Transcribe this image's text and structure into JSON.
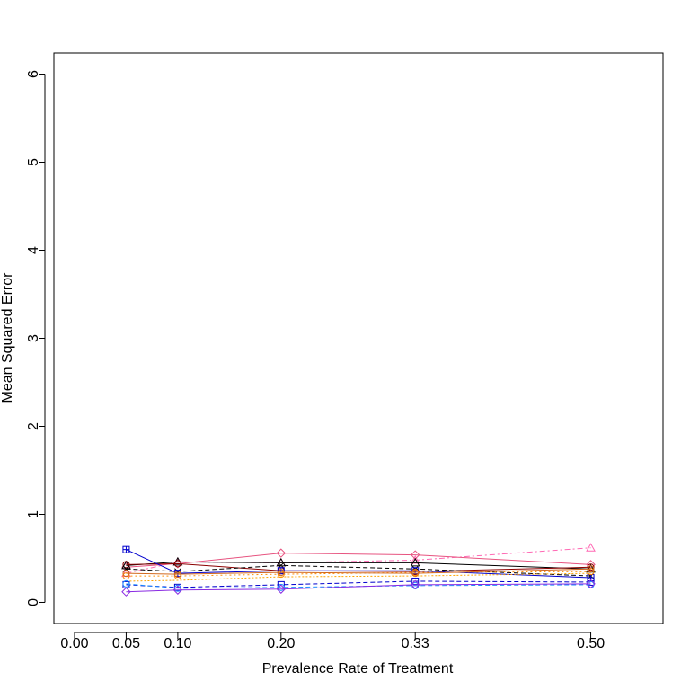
{
  "chart_data": {
    "type": "line",
    "title": "",
    "xlabel": "Prevalence Rate of Treatment",
    "ylabel": "Mean Squared Error",
    "x": [
      0.05,
      0.1,
      0.2,
      0.33,
      0.5
    ],
    "xticks": [
      0.0,
      0.05,
      0.1,
      0.2,
      0.33,
      0.5
    ],
    "xtick_labels": [
      "0.00",
      "0.05",
      "0.10",
      "0.20",
      "0.33",
      "0.50"
    ],
    "yticks": [
      0,
      1,
      2,
      3,
      4,
      5,
      6
    ],
    "ytick_labels": [
      "0",
      "1",
      "2",
      "3",
      "4",
      "5",
      "6"
    ],
    "xlim": [
      -0.02,
      0.57
    ],
    "ylim": [
      -0.24,
      6.24
    ],
    "grid": false,
    "series": [
      {
        "color": "#ff69b4",
        "dash": "6,3,2,3",
        "marker": "triangle",
        "values": [
          0.33,
          0.46,
          0.45,
          0.48,
          0.62
        ]
      },
      {
        "color": "#e75480",
        "dash": "",
        "marker": "diamond",
        "values": [
          0.4,
          0.44,
          0.56,
          0.54,
          0.43
        ]
      },
      {
        "color": "#000000",
        "dash": "",
        "marker": "triangle",
        "values": [
          0.42,
          0.46,
          0.45,
          0.45,
          0.38
        ]
      },
      {
        "color": "#8b0000",
        "dash": "",
        "marker": "circle",
        "values": [
          0.43,
          0.44,
          0.36,
          0.35,
          0.4
        ]
      },
      {
        "color": "#000000",
        "dash": "5,3",
        "marker": "cross",
        "values": [
          0.38,
          0.35,
          0.42,
          0.38,
          0.3
        ]
      },
      {
        "color": "#0000cd",
        "dash": "",
        "marker": "square-plus",
        "values": [
          0.6,
          0.33,
          0.36,
          0.36,
          0.28
        ]
      },
      {
        "color": "#ff8c00",
        "dash": "2,3",
        "marker": "circle",
        "values": [
          0.3,
          0.3,
          0.32,
          0.34,
          0.35
        ]
      },
      {
        "color": "#d2691e",
        "dash": "",
        "marker": "circle",
        "values": [
          0.33,
          0.32,
          0.34,
          0.33,
          0.38
        ]
      },
      {
        "color": "#ffa500",
        "dash": "2,2",
        "marker": "none",
        "values": [
          0.24,
          0.25,
          0.29,
          0.3,
          0.33
        ]
      },
      {
        "color": "#0000cd",
        "dash": "5,3",
        "marker": "square",
        "values": [
          0.2,
          0.17,
          0.2,
          0.24,
          0.23
        ]
      },
      {
        "color": "#1e90ff",
        "dash": "5,3",
        "marker": "circle",
        "values": [
          0.21,
          0.16,
          0.17,
          0.19,
          0.2
        ]
      },
      {
        "color": "#8a2be2",
        "dash": "",
        "marker": "diamond",
        "values": [
          0.12,
          0.14,
          0.15,
          0.2,
          0.21
        ]
      }
    ]
  }
}
